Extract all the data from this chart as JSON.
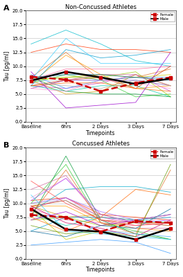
{
  "timepoints": [
    0,
    1,
    2,
    3,
    4
  ],
  "tick_labels": [
    "Baseline",
    "6hrs",
    "2 Days",
    "3 Days",
    "7 Days"
  ],
  "ylim": [
    0.0,
    20.0
  ],
  "yticks": [
    0.0,
    2.5,
    5.0,
    7.5,
    10.0,
    12.5,
    15.0,
    17.5,
    20.0
  ],
  "ylabel": "Tau [pg/ml]",
  "xlabel": "Timepoints",
  "panel_A_title": "Non-Concussed Athletes",
  "panel_B_title": "Concussed Athletes",
  "panel_A_label": "A",
  "panel_B_label": "B",
  "female_mean_A": [
    8.1,
    7.6,
    5.5,
    7.0,
    8.0
  ],
  "male_mean_A": [
    7.4,
    9.0,
    8.0,
    6.8,
    7.8
  ],
  "female_mean_B": [
    7.9,
    7.5,
    4.9,
    6.8,
    6.5
  ],
  "male_mean_B": [
    9.0,
    5.3,
    4.9,
    3.5,
    5.5
  ],
  "female_color": "#cc0000",
  "male_color": "#000000",
  "bg_color": "#ffffff",
  "individual_lines_A": [
    {
      "color": "#e07020",
      "values": [
        8.0,
        12.5,
        7.5,
        8.0,
        9.5
      ]
    },
    {
      "color": "#00bbcc",
      "values": [
        14.0,
        16.5,
        14.0,
        11.0,
        10.0
      ]
    },
    {
      "color": "#cc44cc",
      "values": [
        6.5,
        6.0,
        7.0,
        8.5,
        5.5
      ]
    },
    {
      "color": "#33cc33",
      "values": [
        7.0,
        8.5,
        7.5,
        4.5,
        5.0
      ]
    },
    {
      "color": "#ff6699",
      "values": [
        7.5,
        9.5,
        9.5,
        9.5,
        10.0
      ]
    },
    {
      "color": "#9966ff",
      "values": [
        6.0,
        7.5,
        7.5,
        7.5,
        6.5
      ]
    },
    {
      "color": "#cc9900",
      "values": [
        7.5,
        5.0,
        5.5,
        8.5,
        6.5
      ]
    },
    {
      "color": "#00ccaa",
      "values": [
        6.5,
        5.5,
        6.5,
        6.5,
        4.5
      ]
    },
    {
      "color": "#ff3300",
      "values": [
        12.5,
        14.0,
        13.0,
        13.0,
        12.5
      ]
    },
    {
      "color": "#3399ff",
      "values": [
        8.5,
        6.0,
        7.5,
        8.0,
        8.0
      ]
    },
    {
      "color": "#ff9900",
      "values": [
        7.0,
        12.0,
        8.5,
        6.0,
        6.5
      ]
    },
    {
      "color": "#99cc00",
      "values": [
        7.5,
        8.0,
        8.0,
        9.0,
        4.5
      ]
    },
    {
      "color": "#cc3300",
      "values": [
        6.5,
        7.5,
        8.0,
        6.0,
        10.0
      ]
    },
    {
      "color": "#0099cc",
      "values": [
        6.5,
        13.0,
        11.5,
        12.0,
        13.0
      ]
    },
    {
      "color": "#cc6699",
      "values": [
        6.0,
        7.5,
        8.5,
        8.5,
        6.5
      ]
    },
    {
      "color": "#009933",
      "values": [
        8.0,
        5.5,
        5.0,
        5.0,
        4.5
      ]
    },
    {
      "color": "#ff6600",
      "values": [
        6.5,
        7.0,
        7.0,
        6.0,
        5.5
      ]
    },
    {
      "color": "#9900cc",
      "values": [
        9.0,
        2.5,
        3.0,
        3.5,
        12.5
      ]
    },
    {
      "color": "#cccc00",
      "values": [
        7.5,
        8.0,
        8.5,
        8.0,
        8.5
      ]
    },
    {
      "color": "#ff99cc",
      "values": [
        6.0,
        5.5,
        7.5,
        7.0,
        6.0
      ]
    },
    {
      "color": "#33ccff",
      "values": [
        7.5,
        15.0,
        10.5,
        10.5,
        10.5
      ]
    },
    {
      "color": "#006699",
      "values": [
        8.0,
        8.5,
        8.5,
        8.0,
        7.5
      ]
    },
    {
      "color": "#aaaaaa",
      "values": [
        7.0,
        6.5,
        6.0,
        7.5,
        6.5
      ]
    }
  ],
  "individual_lines_B": [
    {
      "color": "#ff3300",
      "values": [
        10.5,
        11.0,
        8.0,
        7.5,
        7.0
      ]
    },
    {
      "color": "#00aacc",
      "values": [
        8.5,
        12.5,
        13.0,
        13.0,
        12.0
      ]
    },
    {
      "color": "#cc44cc",
      "values": [
        9.0,
        11.0,
        7.5,
        6.5,
        6.0
      ]
    },
    {
      "color": "#33cc33",
      "values": [
        10.0,
        17.0,
        6.5,
        5.0,
        3.5
      ]
    },
    {
      "color": "#9966ff",
      "values": [
        10.0,
        11.0,
        8.5,
        7.0,
        8.0
      ]
    },
    {
      "color": "#ff9900",
      "values": [
        9.5,
        9.5,
        6.5,
        5.5,
        5.0
      ]
    },
    {
      "color": "#0099cc",
      "values": [
        5.0,
        7.5,
        7.5,
        7.0,
        7.5
      ]
    },
    {
      "color": "#cc9900",
      "values": [
        9.5,
        7.5,
        8.0,
        6.5,
        6.0
      ]
    },
    {
      "color": "#ff6699",
      "values": [
        9.0,
        7.0,
        6.5,
        6.0,
        6.5
      ]
    },
    {
      "color": "#00ccaa",
      "values": [
        8.0,
        6.0,
        7.5,
        7.0,
        6.5
      ]
    },
    {
      "color": "#99cc00",
      "values": [
        7.0,
        7.5,
        6.0,
        6.5,
        6.5
      ]
    },
    {
      "color": "#cc3300",
      "values": [
        9.5,
        10.5,
        7.0,
        6.5,
        6.5
      ]
    },
    {
      "color": "#3399ff",
      "values": [
        2.5,
        3.0,
        3.5,
        3.0,
        1.0
      ]
    },
    {
      "color": "#009933",
      "values": [
        7.5,
        18.5,
        7.0,
        4.5,
        3.5
      ]
    },
    {
      "color": "#cc6699",
      "values": [
        12.5,
        15.0,
        7.0,
        5.5,
        5.5
      ]
    },
    {
      "color": "#cccc00",
      "values": [
        9.0,
        3.5,
        5.0,
        3.5,
        5.5
      ]
    },
    {
      "color": "#ff99cc",
      "values": [
        11.0,
        14.5,
        7.5,
        6.0,
        8.0
      ]
    },
    {
      "color": "#9900cc",
      "values": [
        7.0,
        8.5,
        6.0,
        7.0,
        8.0
      ]
    },
    {
      "color": "#33ccff",
      "values": [
        11.5,
        5.0,
        4.5,
        4.0,
        3.5
      ]
    },
    {
      "color": "#e07020",
      "values": [
        8.0,
        16.0,
        6.5,
        4.5,
        16.0
      ]
    },
    {
      "color": "#ff6600",
      "values": [
        7.5,
        5.0,
        7.5,
        12.5,
        11.5
      ]
    },
    {
      "color": "#006699",
      "values": [
        5.0,
        4.0,
        6.0,
        5.5,
        9.0
      ]
    },
    {
      "color": "#cc0066",
      "values": [
        9.5,
        6.5,
        5.5,
        4.0,
        7.0
      ]
    },
    {
      "color": "#669900",
      "values": [
        6.0,
        4.5,
        5.0,
        4.0,
        17.0
      ]
    },
    {
      "color": "#aaaaaa",
      "values": [
        10.0,
        10.5,
        7.5,
        7.0,
        8.0
      ]
    },
    {
      "color": "#ff4444",
      "values": [
        14.0,
        10.0,
        7.0,
        6.0,
        6.5
      ]
    },
    {
      "color": "#44aaff",
      "values": [
        8.0,
        7.5,
        5.0,
        4.5,
        4.0
      ]
    },
    {
      "color": "#aa44ff",
      "values": [
        10.5,
        14.5,
        8.0,
        6.5,
        7.0
      ]
    }
  ]
}
